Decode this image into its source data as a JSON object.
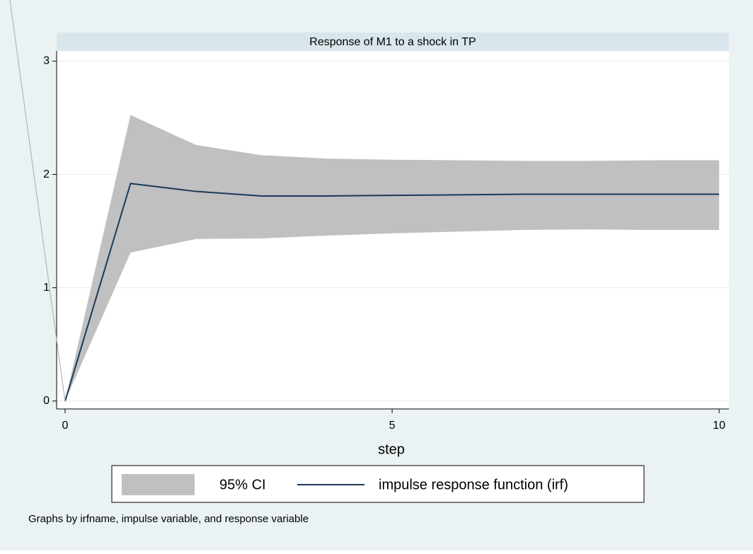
{
  "chart_data": {
    "type": "line",
    "title": "Response of M1 to a shock in TP",
    "xlabel": "step",
    "note": "Graphs by irfname, impulse variable, and response variable",
    "x": [
      0,
      1,
      2,
      3,
      4,
      5,
      6,
      7,
      8,
      9,
      10
    ],
    "series": [
      {
        "name": "95% CI",
        "color": "#c0c0c0",
        "lower": [
          0,
          1.31,
          1.43,
          1.435,
          1.46,
          1.48,
          1.495,
          1.51,
          1.515,
          1.51,
          1.51
        ],
        "upper": [
          0,
          2.525,
          2.26,
          2.17,
          2.14,
          2.13,
          2.125,
          2.12,
          2.12,
          2.125,
          2.125
        ]
      },
      {
        "name": "impulse response function (irf)",
        "color": "#1a3a5a",
        "values": [
          0,
          1.92,
          1.85,
          1.81,
          1.81,
          1.815,
          1.82,
          1.825,
          1.825,
          1.825,
          1.825
        ]
      }
    ],
    "xlim": [
      -0.13,
      10.15
    ],
    "ylim": [
      -0.07,
      3.09
    ],
    "xticks": [
      0,
      5,
      10
    ],
    "yticks": [
      0,
      1,
      2,
      3
    ],
    "grid": true
  }
}
